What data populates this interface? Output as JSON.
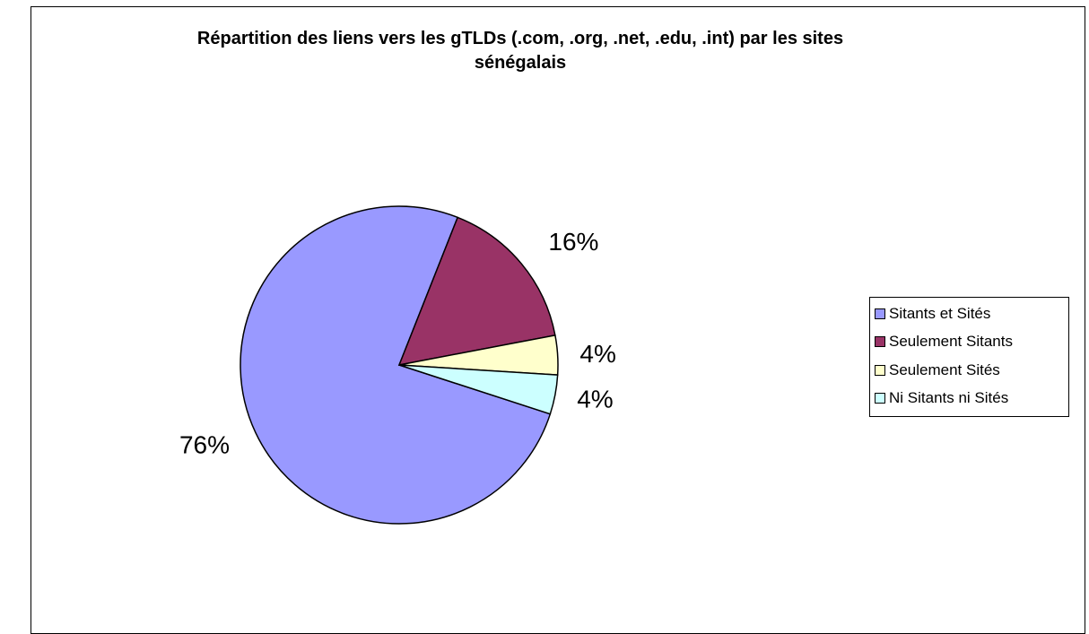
{
  "chart_data": {
    "type": "pie",
    "title": "Répartition des liens vers les gTLDs (.com, .org, .net, .edu, .int) par les sites sénégalais",
    "title_lines": [
      "Répartition des liens vers les gTLDs (.com, .org, .net, .edu, .int) par les sites",
      "sénégalais"
    ],
    "slices": [
      {
        "label": "Sitants et Sités",
        "value": 76,
        "display": "76%",
        "color": "#9999FF"
      },
      {
        "label": "Seulement Sitants",
        "value": 16,
        "display": "16%",
        "color": "#993366"
      },
      {
        "label": "Seulement Sités",
        "value": 4,
        "display": "4%",
        "color": "#FFFFCC"
      },
      {
        "label": "Ni Sitants ni Sités",
        "value": 4,
        "display": "4%",
        "color": "#CCFFFF"
      }
    ],
    "legend_position": "right",
    "legend": [
      {
        "label": "Sitants et Sités",
        "color": "#9999FF"
      },
      {
        "label": "Seulement Sitants",
        "color": "#993366"
      },
      {
        "label": "Seulement Sités",
        "color": "#FFFFCC"
      },
      {
        "label": "Ni Sitants ni Sités",
        "color": "#CCFFFF"
      }
    ]
  }
}
